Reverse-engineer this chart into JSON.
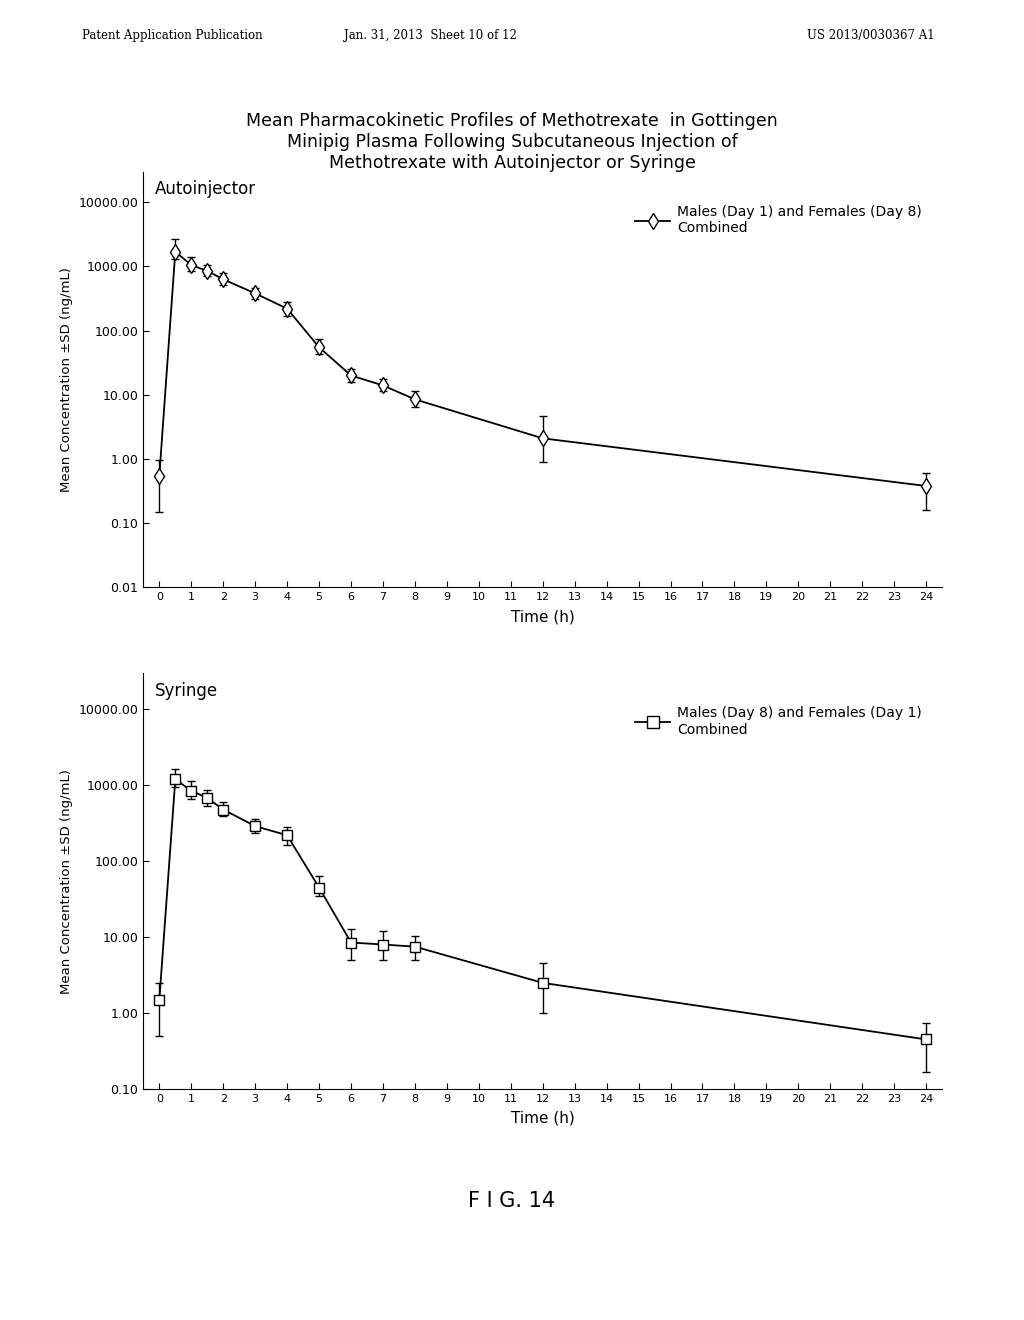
{
  "title": "Mean Pharmacokinetic Profiles of Methotrexate  in Gottingen\nMinipig Plasma Following Subcutaneous Injection of\nMethotrexate with Autoinjector or Syringe",
  "title_fontsize": 12.5,
  "header_left": "Patent Application Publication",
  "header_mid": "Jan. 31, 2013  Sheet 10 of 12",
  "header_right": "US 2013/0030367 A1",
  "fig_label": "F I G. 14",
  "background_color": "#ffffff",
  "subplot1": {
    "label": "Autoinjector",
    "legend_label": "Males (Day 1) and Females (Day 8)\nCombined",
    "marker": "D",
    "ylabel": "Mean Concentration ±SD (ng/mL)",
    "xlabel": "Time (h)",
    "ylim": [
      0.01,
      30000.0
    ],
    "yticks": [
      0.01,
      0.1,
      1.0,
      10.0,
      100.0,
      1000.0,
      10000.0
    ],
    "ytick_labels": [
      "0.01",
      "0.10",
      "1.00",
      "10.00",
      "100.00",
      "1000.00",
      "10000.00"
    ],
    "x": [
      0,
      0.5,
      1,
      1.5,
      2,
      3,
      4,
      5,
      6,
      7,
      8,
      12,
      24
    ],
    "y": [
      0.55,
      1700,
      1050,
      850,
      630,
      380,
      220,
      55,
      20,
      14,
      8.5,
      2.1,
      0.38
    ],
    "yerr_low": [
      0.4,
      400,
      200,
      150,
      120,
      70,
      50,
      12,
      4,
      2.5,
      2,
      1.2,
      0.22
    ],
    "yerr_high": [
      0.4,
      1000,
      350,
      200,
      150,
      80,
      60,
      18,
      5,
      3.5,
      3,
      2.5,
      0.22
    ],
    "xticks": [
      0,
      1,
      2,
      3,
      4,
      5,
      6,
      7,
      8,
      9,
      10,
      11,
      12,
      13,
      14,
      15,
      16,
      17,
      18,
      19,
      20,
      21,
      22,
      23,
      24
    ],
    "xtick_labels": [
      "0",
      "1",
      "2",
      "3",
      "4",
      "5",
      "6",
      "7",
      "8",
      "9",
      "10",
      "11",
      "12",
      "13",
      "14",
      "15",
      "16",
      "17",
      "18",
      "19",
      "20",
      "21",
      "22",
      "23",
      "24"
    ]
  },
  "subplot2": {
    "label": "Syringe",
    "legend_label": "Males (Day 8) and Females (Day 1)\nCombined",
    "marker": "s",
    "ylabel": "Mean Concentration ±SD (ng/mL)",
    "xlabel": "Time (h)",
    "ylim": [
      0.1,
      30000.0
    ],
    "yticks": [
      0.1,
      1.0,
      10.0,
      100.0,
      1000.0,
      10000.0
    ],
    "ytick_labels": [
      "0.10",
      "1.00",
      "10.00",
      "100.00",
      "1000.00",
      "10000.00"
    ],
    "x": [
      0,
      0.5,
      1,
      1.5,
      2,
      3,
      4,
      5,
      6,
      7,
      8,
      12,
      24
    ],
    "y": [
      1.5,
      1200,
      850,
      680,
      480,
      290,
      220,
      45,
      8.5,
      8,
      7.5,
      2.5,
      0.45
    ],
    "yerr_low": [
      1.0,
      250,
      180,
      140,
      90,
      55,
      55,
      10,
      3.5,
      3,
      2.5,
      1.5,
      0.28
    ],
    "yerr_high": [
      1.0,
      450,
      280,
      190,
      130,
      65,
      60,
      18,
      4.5,
      4,
      3,
      2.0,
      0.28
    ],
    "xticks": [
      0,
      1,
      2,
      3,
      4,
      5,
      6,
      7,
      8,
      9,
      10,
      11,
      12,
      13,
      14,
      15,
      16,
      17,
      18,
      19,
      20,
      21,
      22,
      23,
      24
    ],
    "xtick_labels": [
      "0",
      "1",
      "2",
      "3",
      "4",
      "5",
      "6",
      "7",
      "8",
      "9",
      "10",
      "11",
      "12",
      "13",
      "14",
      "15",
      "16",
      "17",
      "18",
      "19",
      "20",
      "21",
      "22",
      "23",
      "24"
    ]
  }
}
